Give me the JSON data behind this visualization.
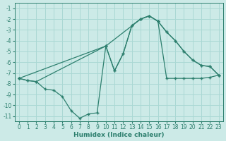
{
  "background_color": "#cceae7",
  "grid_color": "#aad8d4",
  "line_color": "#2d7f6e",
  "xlabel": "Humidex (Indice chaleur)",
  "ylim": [
    -11.5,
    -0.5
  ],
  "xlim": [
    -0.5,
    23.5
  ],
  "yticks": [
    -1,
    -2,
    -3,
    -4,
    -5,
    -6,
    -7,
    -8,
    -9,
    -10,
    -11
  ],
  "xticks": [
    0,
    1,
    2,
    3,
    4,
    5,
    6,
    7,
    8,
    9,
    10,
    11,
    12,
    13,
    14,
    15,
    16,
    17,
    18,
    19,
    20,
    21,
    22,
    23
  ],
  "line1_x": [
    0,
    1,
    2,
    3,
    4,
    5,
    6,
    7,
    8,
    9,
    10,
    11,
    12,
    13,
    14,
    15,
    16,
    17,
    18,
    19,
    20,
    21,
    22,
    23
  ],
  "line1_y": [
    -7.5,
    -7.7,
    -7.8,
    -8.5,
    -8.6,
    -9.2,
    -10.5,
    -11.2,
    -10.8,
    -10.7,
    -4.5,
    -6.8,
    -5.2,
    -2.6,
    -2.0,
    -1.7,
    -2.2,
    -3.2,
    -4.0,
    -5.0,
    -5.8,
    -6.3,
    -6.4,
    -7.2
  ],
  "line2_x": [
    0,
    1,
    2,
    10,
    11,
    12,
    13,
    14,
    15,
    16,
    17,
    18,
    19,
    20,
    21,
    22,
    23
  ],
  "line2_y": [
    -7.5,
    -7.7,
    -7.8,
    -4.5,
    -6.8,
    -5.2,
    -2.6,
    -2.0,
    -1.7,
    -2.2,
    -3.2,
    -4.0,
    -5.0,
    -5.8,
    -6.3,
    -6.4,
    -7.2
  ],
  "line3_x": [
    0,
    10,
    14,
    15,
    16,
    17,
    18,
    19,
    20,
    21,
    22,
    23
  ],
  "line3_y": [
    -7.5,
    -4.5,
    -2.0,
    -1.7,
    -2.2,
    -7.5,
    -7.5,
    -7.5,
    -7.5,
    -7.5,
    -7.4,
    -7.2
  ]
}
